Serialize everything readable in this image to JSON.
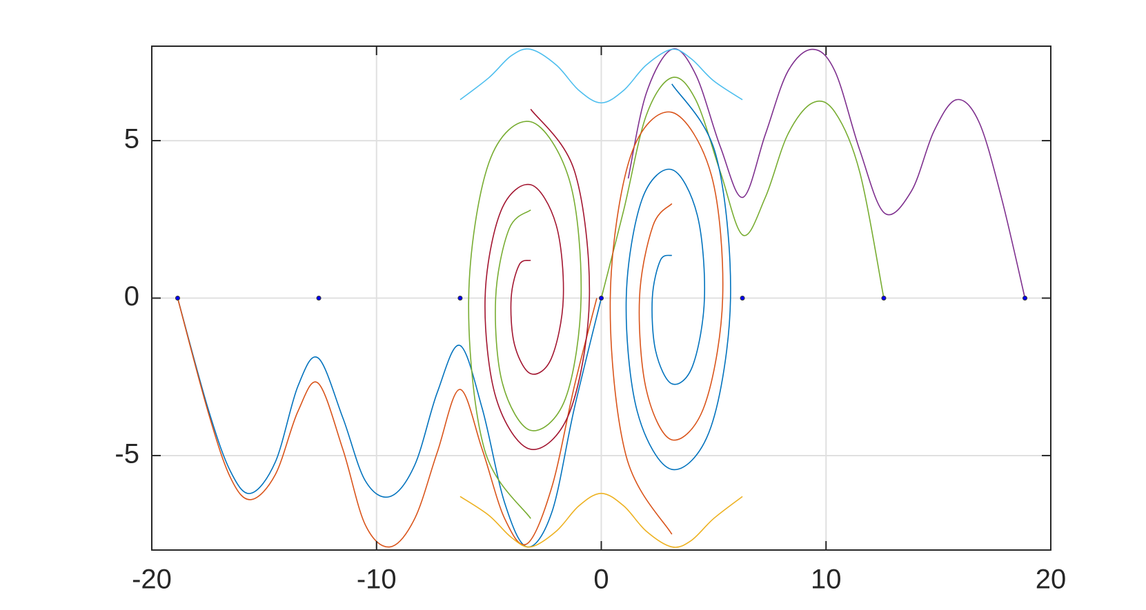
{
  "chart_data": {
    "type": "line",
    "xlim": [
      -20,
      20
    ],
    "ylim": [
      -8,
      8
    ],
    "xticks": [
      -20,
      -10,
      0,
      10,
      20
    ],
    "yticks": [
      -5,
      0,
      5
    ],
    "grid": true,
    "series": [
      {
        "color": "#0072bd",
        "x": [
          -18.85,
          -17.5,
          -16.5,
          -15.6,
          -14.5,
          -13.5,
          -12.6,
          -11.5,
          -10.5,
          -9.4,
          -8.3,
          -7.3,
          -6.3,
          -5.3,
          -4.3,
          -3.3,
          -2.2,
          -1.2,
          0
        ],
        "values": [
          0,
          -3.5,
          -5.5,
          -6.2,
          -5.2,
          -2.8,
          -1.9,
          -3.8,
          -5.8,
          -6.3,
          -5.3,
          -3.0,
          -1.5,
          -3.5,
          -6.5,
          -7.9,
          -6.8,
          -3.5,
          0
        ]
      },
      {
        "color": "#d95319",
        "x": [
          -18.85,
          -17.5,
          -16.5,
          -15.6,
          -14.5,
          -13.5,
          -12.6,
          -11.5,
          -10.5,
          -9.4,
          -8.3,
          -7.3,
          -6.3,
          -5.3,
          -4.3,
          -3.3,
          -2.2,
          -1.2,
          -0.2
        ],
        "values": [
          0,
          -3.6,
          -5.7,
          -6.4,
          -5.6,
          -3.6,
          -2.7,
          -4.8,
          -7.2,
          -7.9,
          -7.0,
          -4.9,
          -2.9,
          -4.8,
          -7.0,
          -7.8,
          -6.0,
          -2.8,
          0
        ]
      },
      {
        "color": "#7e2f8e",
        "x": [
          18.85,
          17.8,
          16.8,
          15.8,
          14.8,
          13.8,
          12.6,
          11.5,
          10.4,
          9.4,
          8.3,
          7.3,
          6.3,
          5.3,
          4.2,
          3.14,
          2.0,
          1.2
        ],
        "values": [
          0,
          3.2,
          5.6,
          6.3,
          5.3,
          3.4,
          2.7,
          4.7,
          7.2,
          7.9,
          7.2,
          5.2,
          3.2,
          4.8,
          7.1,
          7.9,
          6.5,
          3.8
        ]
      },
      {
        "color": "#77ac30",
        "x": [
          12.57,
          11.5,
          10.4,
          9.4,
          8.3,
          7.3,
          6.3,
          5.3,
          4.2,
          3.14,
          2.0,
          1.0,
          0
        ],
        "values": [
          0,
          4.0,
          5.9,
          6.2,
          5.2,
          3.2,
          2.0,
          4.0,
          6.3,
          7.0,
          5.8,
          2.8,
          0
        ]
      },
      {
        "color": "#4dbeee",
        "x": [
          -6.28,
          -5,
          -4,
          -3.14,
          -2,
          -1,
          0,
          1,
          2,
          3.14,
          4,
          5,
          6.28
        ],
        "values": [
          6.3,
          7.0,
          7.7,
          7.9,
          7.4,
          6.6,
          6.2,
          6.6,
          7.4,
          7.9,
          7.6,
          6.9,
          6.3
        ]
      },
      {
        "color": "#edb120",
        "x": [
          6.28,
          5,
          4,
          3.14,
          2,
          1,
          0,
          -1,
          -2,
          -3.14,
          -4,
          -5,
          -6.28
        ],
        "values": [
          -6.3,
          -7.0,
          -7.7,
          -7.9,
          -7.4,
          -6.6,
          -6.2,
          -6.6,
          -7.4,
          -7.9,
          -7.6,
          -6.9,
          -6.3
        ]
      },
      {
        "color": "#a2142f",
        "x": [
          -3.14,
          -1.19,
          -0.53,
          -1.4,
          -3.14,
          -4.68,
          -5.17,
          -4.47,
          -3.14,
          -2.01,
          -1.69,
          -2.22,
          -3.14,
          -3.86,
          -4.01,
          -3.65,
          -3.14
        ],
        "values": [
          6.0,
          4.03,
          0,
          -3.61,
          -4.8,
          -3.18,
          0,
          2.76,
          3.6,
          2.33,
          0,
          -1.91,
          -2.4,
          -1.48,
          0,
          1.06,
          1.2
        ]
      },
      {
        "color": "#0072bd",
        "x": [
          3.14,
          5.09,
          5.75,
          4.88,
          3.14,
          1.6,
          1.11,
          1.81,
          3.14,
          4.27,
          4.59,
          4.06,
          3.14,
          2.42,
          2.27,
          2.63,
          3.14
        ],
        "values": [
          6.8,
          4.57,
          0,
          -4.09,
          -5.44,
          -3.6,
          0,
          3.13,
          4.08,
          2.64,
          0,
          -2.16,
          -2.72,
          -1.68,
          0,
          1.2,
          1.36
        ]
      },
      {
        "color": "#77ac30",
        "x": [
          -3.14,
          -5.2,
          -5.9,
          -5.0,
          -3.14,
          -1.4,
          -0.9,
          -1.6,
          -3.14,
          -4.4,
          -4.7,
          -4.1,
          -3.14
        ],
        "values": [
          -7.0,
          -4.8,
          0,
          4.3,
          5.6,
          3.7,
          0,
          -3.2,
          -4.2,
          -2.7,
          0,
          2.2,
          2.8
        ]
      },
      {
        "color": "#d95319",
        "x": [
          3.14,
          1.1,
          0.4,
          1.3,
          3.14,
          4.9,
          5.4,
          4.6,
          3.14,
          2.0,
          1.7,
          2.3,
          3.14
        ],
        "values": [
          -7.5,
          -5.0,
          0,
          4.5,
          5.9,
          3.9,
          0,
          -3.4,
          -4.5,
          -2.9,
          0,
          2.3,
          3.0
        ]
      },
      {
        "type": "scatter",
        "color": "#0000ff",
        "x": [
          -18.85,
          -12.57,
          -6.28,
          0,
          6.28,
          12.57,
          18.85
        ],
        "values": [
          0,
          0,
          0,
          0,
          0,
          0,
          0
        ]
      }
    ]
  }
}
